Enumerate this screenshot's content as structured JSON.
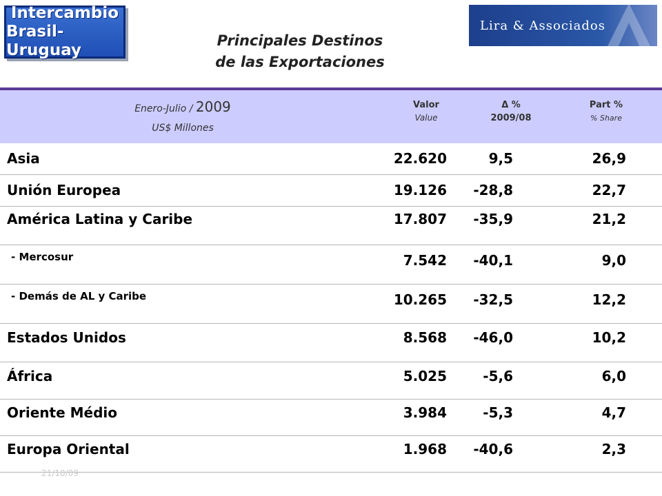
{
  "logos": {
    "left": [
      "Intercambio",
      "Brasil-Uruguay"
    ],
    "right": "Lira & Associados"
  },
  "title": [
    "Principales Destinos",
    "de las Exportaciones"
  ],
  "table": {
    "header": {
      "period_label": "Enero-Julio /",
      "year": "2009",
      "unit": "US$ Millones",
      "col_value": "Valor",
      "col_value_en": "Value",
      "col_delta": "Δ %",
      "col_delta_years": "2009/08",
      "col_part": "Part %",
      "col_part_en": "% Share"
    },
    "rows": [
      {
        "label": "Asia",
        "value": "22.620",
        "delta": "9,5",
        "share": "26,9"
      },
      {
        "label": "Unión Europea",
        "value": "19.126",
        "delta": "-28,8",
        "share": "22,7"
      },
      {
        "label": "América Latina y Caribe",
        "value": "17.807",
        "delta": "-35,9",
        "share": "21,2"
      },
      {
        "label": " - Mercosur",
        "value": "7.542",
        "delta": "-40,1",
        "share": "9,0"
      },
      {
        "label": " - Demás de AL y Caribe",
        "value": "10.265",
        "delta": "-32,5",
        "share": "12,2"
      },
      {
        "label": "Estados Unidos",
        "value": "8.568",
        "delta": "-46,0",
        "share": "10,2"
      },
      {
        "label": "África",
        "value": "5.025",
        "delta": "-5,6",
        "share": "6,0"
      },
      {
        "label": "Oriente Médio",
        "value": "3.984",
        "delta": "-5,3",
        "share": "4,7"
      },
      {
        "label": "Europa Oriental",
        "value": "1.968",
        "delta": "-40,6",
        "share": "2,3"
      }
    ]
  },
  "footer": {
    "date": "21/10/09"
  },
  "colors": {
    "header_band": "#ccccff",
    "header_rule": "#5a3a96",
    "logo_left": "#1f4fb5",
    "logo_right": "#1d3f8c"
  }
}
